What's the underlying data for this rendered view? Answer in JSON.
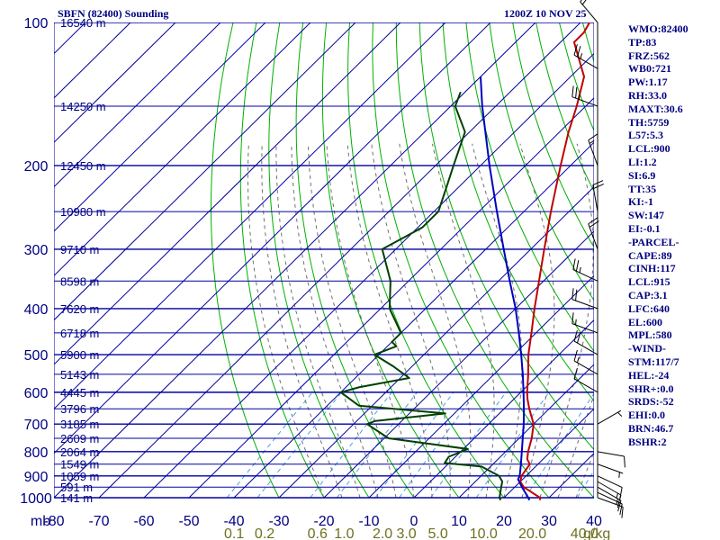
{
  "header": {
    "title": "SBFN (82400) Sounding",
    "valid_time": "1200Z 10 NOV 25"
  },
  "indices": [
    "WMO:82400",
    "TP:83",
    "FRZ:562",
    "WB0:721",
    "PW:1.17",
    "RH:33.0",
    "MAXT:30.6",
    "TH:5759",
    "L57:5.3",
    "LCL:900",
    "LI:1.2",
    "SI:6.9",
    "TT:35",
    "KI:-1",
    "SW:147",
    "EI:-0.1",
    "-PARCEL-",
    "CAPE:89",
    "CINH:117",
    "LCL:915",
    "CAP:3.1",
    "LFC:640",
    "EL:600",
    "MPL:580",
    "-WIND-",
    "STM:117/7",
    "HEL:-24",
    "SHR+:0.0",
    "SRDS:-52",
    "EHI:0.0",
    "BRN:46.7",
    "BSHR:2"
  ],
  "colors": {
    "isobar": "#0000a0",
    "isotherm": "#0000a0",
    "dry_adiabat": "#00b000",
    "moist_adiabat": "#707070",
    "mixing_ratio": "#50a0e0",
    "temperature": "#c00000",
    "dewpoint": "#004000",
    "parcel": "#0000c0",
    "axis_text": "#000080",
    "mixing_label": "#707020"
  },
  "chart_data": {
    "type": "skew-t log-p",
    "pressure_axis": {
      "unit_label": "mb",
      "ticks": [
        100,
        200,
        300,
        400,
        500,
        600,
        700,
        800,
        900,
        1000
      ],
      "range": [
        100,
        1000
      ],
      "scale": "log"
    },
    "temperature_axis": {
      "ticks": [
        -80,
        -70,
        -60,
        -50,
        -40,
        -30,
        -20,
        -10,
        0,
        10,
        20,
        30,
        40
      ],
      "range": [
        -80,
        40
      ]
    },
    "mixing_ratio_labels": [
      "0.1",
      "0.2",
      "0.6",
      "1.0",
      "2.0",
      "3.0",
      "5.0",
      "10.0",
      "20.0",
      "40.0"
    ],
    "mixing_ratio_unit": "g/kg",
    "height_labels": [
      {
        "p": 100,
        "label": "16540 m"
      },
      {
        "p": 150,
        "label": "14250 m"
      },
      {
        "p": 200,
        "label": "12450 m"
      },
      {
        "p": 250,
        "label": "10980 m"
      },
      {
        "p": 300,
        "label": "9710 m"
      },
      {
        "p": 350,
        "label": "8598 m"
      },
      {
        "p": 400,
        "label": "7620 m"
      },
      {
        "p": 450,
        "label": "6718 m"
      },
      {
        "p": 500,
        "label": "5900 m"
      },
      {
        "p": 550,
        "label": "5143 m"
      },
      {
        "p": 600,
        "label": "4445 m"
      },
      {
        "p": 650,
        "label": "3796 m"
      },
      {
        "p": 700,
        "label": "3185 m"
      },
      {
        "p": 750,
        "label": "2609 m"
      },
      {
        "p": 800,
        "label": "2064 m"
      },
      {
        "p": 850,
        "label": "1549 m"
      },
      {
        "p": 900,
        "label": "1059 m"
      },
      {
        "p": 950,
        "label": "591 m"
      },
      {
        "p": 1000,
        "label": "141 m"
      }
    ],
    "temperature_profile": [
      [
        1012,
        28.6
      ],
      [
        1000,
        28.0
      ],
      [
        950,
        22.0
      ],
      [
        925,
        20.0
      ],
      [
        900,
        19.0
      ],
      [
        850,
        18.2
      ],
      [
        830,
        16.5
      ],
      [
        800,
        15.0
      ],
      [
        750,
        12.8
      ],
      [
        700,
        10.0
      ],
      [
        650,
        5.6
      ],
      [
        620,
        3.0
      ],
      [
        600,
        1.4
      ],
      [
        550,
        -2.4
      ],
      [
        500,
        -6.8
      ],
      [
        450,
        -11.0
      ],
      [
        400,
        -15.8
      ],
      [
        350,
        -21.0
      ],
      [
        300,
        -27.0
      ],
      [
        250,
        -34.0
      ],
      [
        200,
        -42.2
      ],
      [
        170,
        -48.0
      ],
      [
        150,
        -52.0
      ],
      [
        130,
        -57.0
      ],
      [
        110,
        -67.0
      ],
      [
        105,
        -67.0
      ],
      [
        100,
        -68.0
      ]
    ],
    "dewpoint_profile": [
      [
        1012,
        19.8
      ],
      [
        1000,
        19.0
      ],
      [
        950,
        17.0
      ],
      [
        925,
        16.0
      ],
      [
        900,
        14.0
      ],
      [
        860,
        8.0
      ],
      [
        845,
        -1.0
      ],
      [
        820,
        -1.5
      ],
      [
        790,
        1.0
      ],
      [
        750,
        -19.0
      ],
      [
        700,
        -27.0
      ],
      [
        690,
        -26.0
      ],
      [
        665,
        -12.0
      ],
      [
        640,
        -33.0
      ],
      [
        600,
        -40.0
      ],
      [
        585,
        -37.0
      ],
      [
        560,
        -28.0
      ],
      [
        530,
        -34.0
      ],
      [
        500,
        -41.0
      ],
      [
        480,
        -38.0
      ],
      [
        470,
        -40.0
      ],
      [
        450,
        -40.0
      ],
      [
        400,
        -48.0
      ],
      [
        350,
        -54.0
      ],
      [
        300,
        -63.0
      ],
      [
        270,
        -59.0
      ],
      [
        250,
        -59.0
      ],
      [
        220,
        -63.0
      ],
      [
        200,
        -66.0
      ],
      [
        170,
        -71.0
      ],
      [
        150,
        -79.0
      ],
      [
        140,
        -81.0
      ]
    ],
    "parcel_path": [
      [
        1012,
        26.2
      ],
      [
        1000,
        25.4
      ],
      [
        950,
        21.6
      ],
      [
        915,
        19.0
      ],
      [
        900,
        18.6
      ],
      [
        850,
        16.2
      ],
      [
        800,
        13.6
      ],
      [
        750,
        10.8
      ],
      [
        700,
        7.8
      ],
      [
        650,
        4.4
      ],
      [
        600,
        0.6
      ],
      [
        550,
        -3.6
      ],
      [
        500,
        -8.4
      ],
      [
        450,
        -13.8
      ],
      [
        400,
        -20.0
      ],
      [
        350,
        -27.5
      ],
      [
        300,
        -36.0
      ],
      [
        250,
        -46.0
      ],
      [
        200,
        -58.0
      ],
      [
        150,
        -73.0
      ],
      [
        130,
        -80.0
      ]
    ],
    "winds": [
      {
        "p": 1000,
        "dir": 110,
        "spd": 10
      },
      {
        "p": 975,
        "dir": 115,
        "spd": 15
      },
      {
        "p": 950,
        "dir": 120,
        "spd": 15
      },
      {
        "p": 925,
        "dir": 120,
        "spd": 15
      },
      {
        "p": 900,
        "dir": 115,
        "spd": 10
      },
      {
        "p": 850,
        "dir": 110,
        "spd": 5
      },
      {
        "p": 800,
        "dir": 100,
        "spd": 10
      },
      {
        "p": 700,
        "dir": 60,
        "spd": 5
      },
      {
        "p": 600,
        "dir": 300,
        "spd": 10
      },
      {
        "p": 550,
        "dir": 300,
        "spd": 15
      },
      {
        "p": 500,
        "dir": 300,
        "spd": 20
      },
      {
        "p": 450,
        "dir": 290,
        "spd": 15
      },
      {
        "p": 400,
        "dir": 290,
        "spd": 20
      },
      {
        "p": 350,
        "dir": 295,
        "spd": 25
      },
      {
        "p": 300,
        "dir": 340,
        "spd": 20
      },
      {
        "p": 250,
        "dir": 350,
        "spd": 20
      },
      {
        "p": 200,
        "dir": 340,
        "spd": 15
      },
      {
        "p": 150,
        "dir": 290,
        "spd": 25
      },
      {
        "p": 125,
        "dir": 300,
        "spd": 25
      },
      {
        "p": 100,
        "dir": 320,
        "spd": 20
      }
    ],
    "legend": "none"
  }
}
